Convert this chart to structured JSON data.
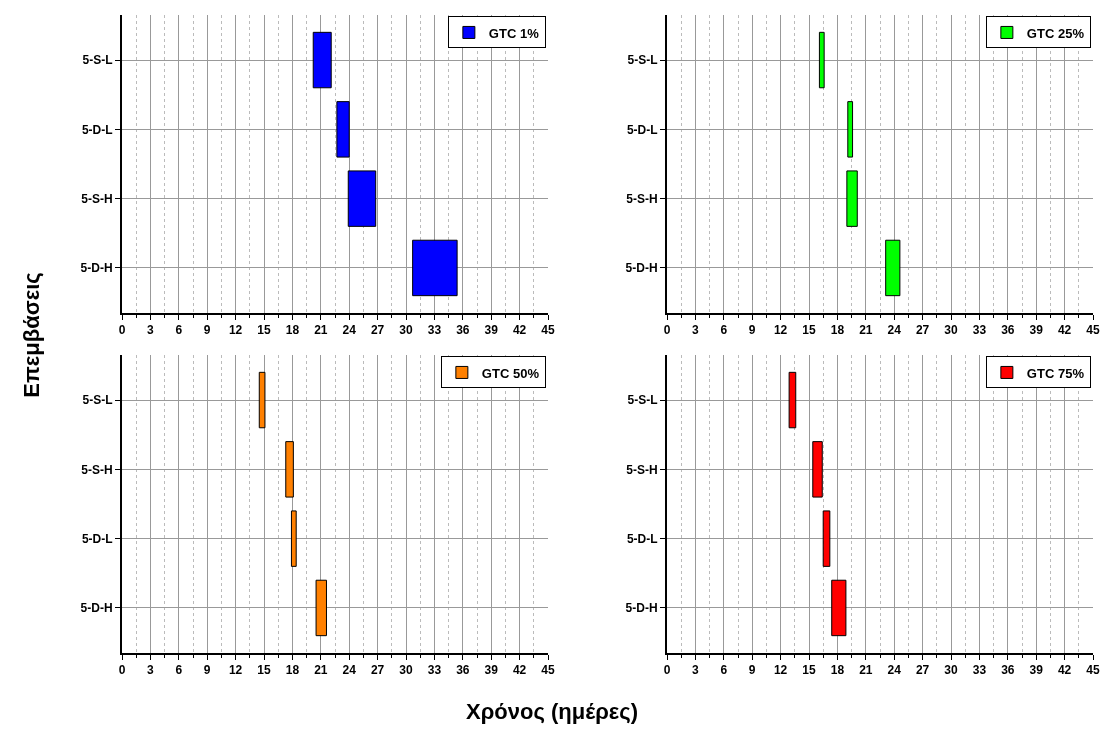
{
  "chart_data": [
    {
      "type": "bar",
      "orientation": "horizontal",
      "ylabel": "Επεμβάσεις",
      "categories": [
        "5-S-L",
        "5-D-L",
        "5-S-H",
        "5-D-H"
      ],
      "series": [
        {
          "name": "GTC 1%",
          "color": "#0000ff",
          "base": [
            20.2,
            22.7,
            23.9,
            30.7
          ],
          "values": [
            1.9,
            1.3,
            2.9,
            4.7
          ]
        }
      ],
      "xlim": [
        0,
        45
      ],
      "xticks": [
        0,
        3,
        6,
        9,
        12,
        15,
        18,
        21,
        24,
        27,
        30,
        33,
        36,
        39,
        42,
        45
      ],
      "grid": true,
      "legend": "top right"
    },
    {
      "type": "bar",
      "orientation": "horizontal",
      "categories": [
        "5-S-L",
        "5-D-L",
        "5-S-H",
        "5-D-H"
      ],
      "series": [
        {
          "name": "GTC 25%",
          "color": "#00ff00",
          "base": [
            16.1,
            19.1,
            19.0,
            23.1
          ],
          "values": [
            0.5,
            0.5,
            1.1,
            1.5
          ]
        }
      ],
      "xlim": [
        0,
        45
      ],
      "xticks": [
        0,
        3,
        6,
        9,
        12,
        15,
        18,
        21,
        24,
        27,
        30,
        33,
        36,
        39,
        42,
        45
      ],
      "grid": true,
      "legend": "top right"
    },
    {
      "type": "bar",
      "orientation": "horizontal",
      "xlabel": "Χρόνος (ημέρες)",
      "categories": [
        "5-S-L",
        "5-S-H",
        "5-D-L",
        "5-D-H"
      ],
      "series": [
        {
          "name": "GTC 50%",
          "color": "#ff8000",
          "base": [
            14.5,
            17.3,
            17.9,
            20.5
          ],
          "values": [
            0.6,
            0.8,
            0.5,
            1.1
          ]
        }
      ],
      "xlim": [
        0,
        45
      ],
      "xticks": [
        0,
        3,
        6,
        9,
        12,
        15,
        18,
        21,
        24,
        27,
        30,
        33,
        36,
        39,
        42,
        45
      ],
      "grid": true,
      "legend": "top right"
    },
    {
      "type": "bar",
      "orientation": "horizontal",
      "categories": [
        "5-S-L",
        "5-S-H",
        "5-D-L",
        "5-D-H"
      ],
      "series": [
        {
          "name": "GTC 75%",
          "color": "#ff0000",
          "base": [
            12.9,
            15.4,
            16.5,
            17.4
          ],
          "values": [
            0.7,
            1.0,
            0.7,
            1.5
          ]
        }
      ],
      "xlim": [
        0,
        45
      ],
      "xticks": [
        0,
        3,
        6,
        9,
        12,
        15,
        18,
        21,
        24,
        27,
        30,
        33,
        36,
        39,
        42,
        45
      ],
      "grid": true,
      "legend": "top right"
    }
  ]
}
